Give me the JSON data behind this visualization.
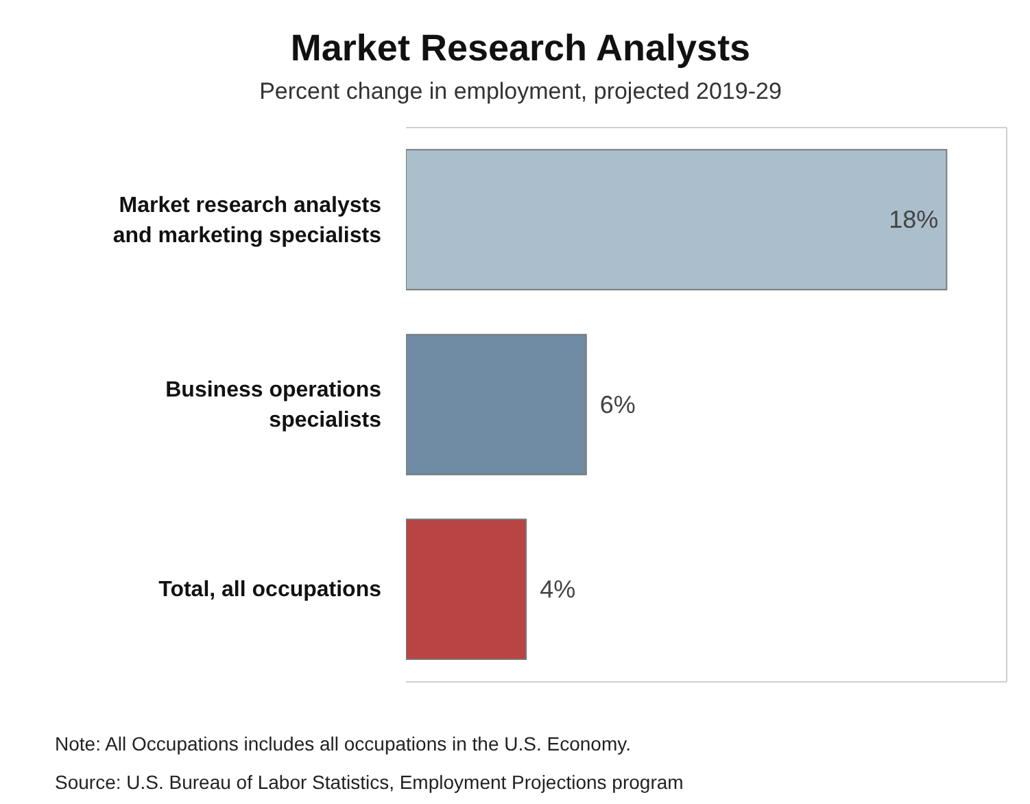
{
  "chart_data": {
    "type": "bar",
    "orientation": "horizontal",
    "title": "Market Research Analysts",
    "subtitle": "Percent change in employment, projected 2019-29",
    "categories": [
      "Market research analysts and marketing specialists",
      "Business operations specialists",
      "Total, all occupations"
    ],
    "values": [
      18,
      6,
      4
    ],
    "colors": [
      "#abbecb",
      "#6f8ca4",
      "#b94444"
    ],
    "value_labels": [
      "18%",
      "6%",
      "4%"
    ],
    "xlim": [
      0,
      20
    ],
    "tick_labels": "y",
    "annotations": [
      "Note: All Occupations includes all occupations in the U.S. Economy.",
      "Source: U.S. Bureau of Labor Statistics, Employment Projections program"
    ]
  }
}
